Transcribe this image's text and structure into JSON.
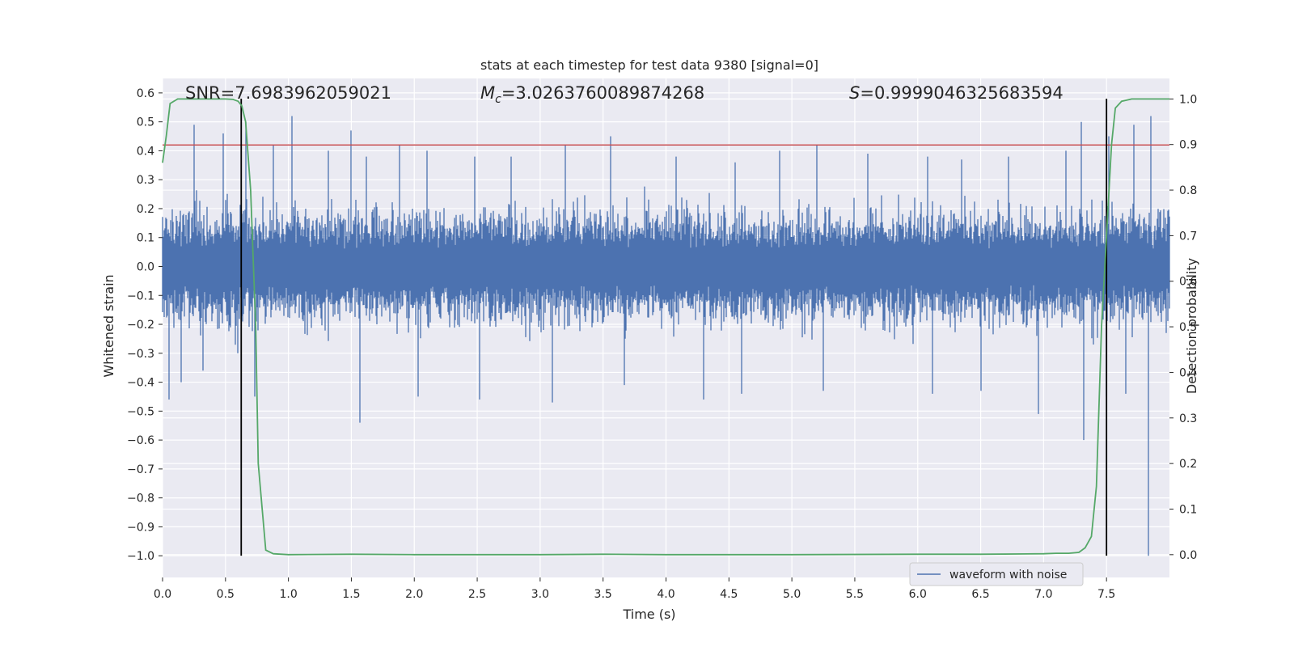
{
  "chart_data": {
    "type": "line",
    "title": "stats at each timestep for test data 9380 [signal=0]",
    "xlabel": "Time (s)",
    "ylabel_left": "Whitened strain",
    "ylabel_right": "Detection probability",
    "xlim": [
      0.0,
      8.0
    ],
    "ylim_left": [
      -1.075,
      0.65
    ],
    "ylim_right": [
      -0.05,
      1.045
    ],
    "grid": true,
    "x_ticks": [
      "0.0",
      "0.5",
      "1.0",
      "1.5",
      "2.0",
      "2.5",
      "3.0",
      "3.5",
      "4.0",
      "4.5",
      "5.0",
      "5.5",
      "6.0",
      "6.5",
      "7.0",
      "7.5"
    ],
    "x_tick_values": [
      0.0,
      0.5,
      1.0,
      1.5,
      2.0,
      2.5,
      3.0,
      3.5,
      4.0,
      4.5,
      5.0,
      5.5,
      6.0,
      6.5,
      7.0,
      7.5
    ],
    "y_left_ticks": [
      "0.6",
      "0.5",
      "0.4",
      "0.3",
      "0.2",
      "0.1",
      "0.0",
      "−0.1",
      "−0.2",
      "−0.3",
      "−0.4",
      "−0.5",
      "−0.6",
      "−0.7",
      "−0.8",
      "−0.9",
      "−1.0"
    ],
    "y_left_tick_values": [
      0.6,
      0.5,
      0.4,
      0.3,
      0.2,
      0.1,
      0.0,
      -0.1,
      -0.2,
      -0.3,
      -0.4,
      -0.5,
      -0.6,
      -0.7,
      -0.8,
      -0.9,
      -1.0
    ],
    "y_right_ticks": [
      "1.0",
      "0.9",
      "0.8",
      "0.7",
      "0.6",
      "0.5",
      "0.4",
      "0.3",
      "0.2",
      "0.1",
      "0.0"
    ],
    "y_right_tick_values": [
      1.0,
      0.9,
      0.8,
      0.7,
      0.6,
      0.5,
      0.4,
      0.3,
      0.2,
      0.1,
      0.0
    ],
    "annotations": {
      "snr": "SNR=7.6983962059021",
      "mc_symbol": "M",
      "mc_sub": "c",
      "mc_value": "=3.0263760089874268",
      "s_symbol": "S",
      "s_value": "=0.9999046325683594"
    },
    "threshold_left": 0.42,
    "vertical_lines_x": [
      0.625,
      7.5
    ],
    "vertical_lines_range_left": [
      -1.0,
      0.58
    ],
    "legend": {
      "label": "waveform with noise",
      "position": "lower-right"
    },
    "series": [
      {
        "name": "waveform with noise",
        "axis": "left",
        "color": "#4c72b0",
        "description": "dense noisy strain samples spanning 0–8 s",
        "typical_range": [
          -0.25,
          0.25
        ],
        "peaks_high": [
          [
            0.25,
            0.49
          ],
          [
            0.48,
            0.46
          ],
          [
            0.66,
            0.5
          ],
          [
            0.88,
            0.42
          ],
          [
            1.03,
            0.52
          ],
          [
            1.32,
            0.4
          ],
          [
            1.5,
            0.47
          ],
          [
            1.62,
            0.38
          ],
          [
            1.88,
            0.42
          ],
          [
            2.1,
            0.4
          ],
          [
            2.48,
            0.38
          ],
          [
            2.77,
            0.38
          ],
          [
            3.2,
            0.42
          ],
          [
            3.56,
            0.45
          ],
          [
            4.08,
            0.38
          ],
          [
            4.55,
            0.36
          ],
          [
            4.9,
            0.4
          ],
          [
            5.2,
            0.42
          ],
          [
            5.6,
            0.39
          ],
          [
            6.08,
            0.38
          ],
          [
            6.35,
            0.37
          ],
          [
            6.72,
            0.38
          ],
          [
            7.18,
            0.4
          ],
          [
            7.3,
            0.5
          ],
          [
            7.52,
            0.45
          ],
          [
            7.72,
            0.49
          ],
          [
            7.85,
            0.52
          ]
        ],
        "peaks_low": [
          [
            0.05,
            -0.46
          ],
          [
            0.15,
            -0.4
          ],
          [
            0.32,
            -0.36
          ],
          [
            0.6,
            -0.3
          ],
          [
            0.73,
            -0.45
          ],
          [
            1.57,
            -0.54
          ],
          [
            2.03,
            -0.45
          ],
          [
            2.52,
            -0.46
          ],
          [
            3.1,
            -0.47
          ],
          [
            3.67,
            -0.41
          ],
          [
            4.3,
            -0.46
          ],
          [
            4.6,
            -0.44
          ],
          [
            5.25,
            -0.43
          ],
          [
            6.12,
            -0.44
          ],
          [
            6.5,
            -0.43
          ],
          [
            6.96,
            -0.51
          ],
          [
            7.32,
            -0.6
          ],
          [
            7.5,
            -0.45
          ],
          [
            7.65,
            -0.44
          ],
          [
            7.83,
            -1.0
          ]
        ]
      },
      {
        "name": "detection probability",
        "axis": "right",
        "color": "#55a868",
        "x": [
          0.0,
          0.03,
          0.06,
          0.12,
          0.2,
          0.3,
          0.4,
          0.5,
          0.56,
          0.6,
          0.63,
          0.66,
          0.7,
          0.74,
          0.76,
          0.82,
          0.88,
          1.0,
          1.5,
          2.0,
          3.0,
          3.5,
          4.0,
          5.0,
          6.0,
          6.5,
          7.0,
          7.1,
          7.2,
          7.28,
          7.33,
          7.38,
          7.42,
          7.46,
          7.5,
          7.54,
          7.57,
          7.62,
          7.7,
          8.0
        ],
        "y": [
          0.86,
          0.92,
          0.99,
          1.0,
          1.0,
          1.0,
          1.0,
          1.0,
          0.999,
          0.995,
          0.985,
          0.95,
          0.8,
          0.5,
          0.2,
          0.01,
          0.002,
          0.0,
          0.001,
          0.0,
          0.0,
          0.001,
          0.0,
          0.0,
          0.001,
          0.001,
          0.002,
          0.003,
          0.003,
          0.005,
          0.015,
          0.04,
          0.15,
          0.5,
          0.7,
          0.9,
          0.98,
          0.995,
          1.0,
          1.0
        ]
      }
    ]
  },
  "colors": {
    "axes_bg": "#eaeaf2",
    "grid": "#ffffff",
    "threshold": "#c44e52",
    "vline": "#000000"
  }
}
